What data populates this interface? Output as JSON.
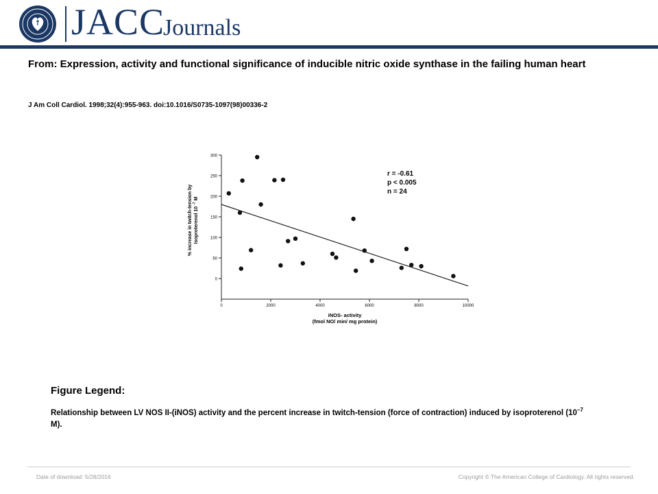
{
  "header": {
    "logo_text": "JACC",
    "logo_subtext": "Journals",
    "seal_text": "AMERICAN COLLEGE OF CARDIOLOGY",
    "brand_color": "#1b3764"
  },
  "article": {
    "title": "From: Expression, activity and functional significance of inducible nitric oxide synthase in the failing human heart",
    "citation": "J Am Coll Cardiol. 1998;32(4):955-963. doi:10.1016/S0735-1097(98)00336-2"
  },
  "chart_data": {
    "type": "scatter",
    "xlabel_line1": "iNOS- activity",
    "xlabel_line2": "(fmol NO/ min/ mg protein)",
    "ylabel_line1": "% increase in twitch-tension by",
    "ylabel_line2": "Isoproterenol 10",
    "ylabel_exp": "-7",
    "ylabel_unit": "M",
    "xlim": [
      0,
      10000
    ],
    "ylim": [
      -50,
      300
    ],
    "x_ticks": [
      "0",
      "2000",
      "4000",
      "6000",
      "8000",
      "10000"
    ],
    "y_ticks": [
      "0",
      "50",
      "100",
      "150",
      "200",
      "250",
      "300"
    ],
    "stats": [
      "r = -0.61",
      "p < 0.005",
      "n = 24"
    ],
    "regression": {
      "x": [
        0,
        10000
      ],
      "y": [
        180,
        -18
      ]
    },
    "points": [
      {
        "x": 300,
        "y": 207
      },
      {
        "x": 750,
        "y": 160
      },
      {
        "x": 800,
        "y": 24
      },
      {
        "x": 850,
        "y": 238
      },
      {
        "x": 1200,
        "y": 69
      },
      {
        "x": 1450,
        "y": 295
      },
      {
        "x": 1600,
        "y": 180
      },
      {
        "x": 2150,
        "y": 239
      },
      {
        "x": 2400,
        "y": 32
      },
      {
        "x": 2500,
        "y": 240
      },
      {
        "x": 2700,
        "y": 91
      },
      {
        "x": 3000,
        "y": 97
      },
      {
        "x": 3300,
        "y": 37
      },
      {
        "x": 4500,
        "y": 60
      },
      {
        "x": 4650,
        "y": 51
      },
      {
        "x": 5350,
        "y": 145
      },
      {
        "x": 5450,
        "y": 19
      },
      {
        "x": 5800,
        "y": 68
      },
      {
        "x": 6100,
        "y": 43
      },
      {
        "x": 7300,
        "y": 26
      },
      {
        "x": 7500,
        "y": 72
      },
      {
        "x": 7700,
        "y": 33
      },
      {
        "x": 8100,
        "y": 30
      },
      {
        "x": 9400,
        "y": 6
      }
    ]
  },
  "legend": {
    "heading": "Figure Legend:",
    "text_before": "Relationship between LV NOS II-(iNOS) activity and the percent increase in twitch-tension (force of contraction) induced by isoproterenol (10",
    "text_exp": "−7",
    "text_after": " M)."
  },
  "footer": {
    "date": "Date of download: 5/28/2016",
    "copyright": "Copyright © The American College of Cardiology. All rights reserved."
  }
}
